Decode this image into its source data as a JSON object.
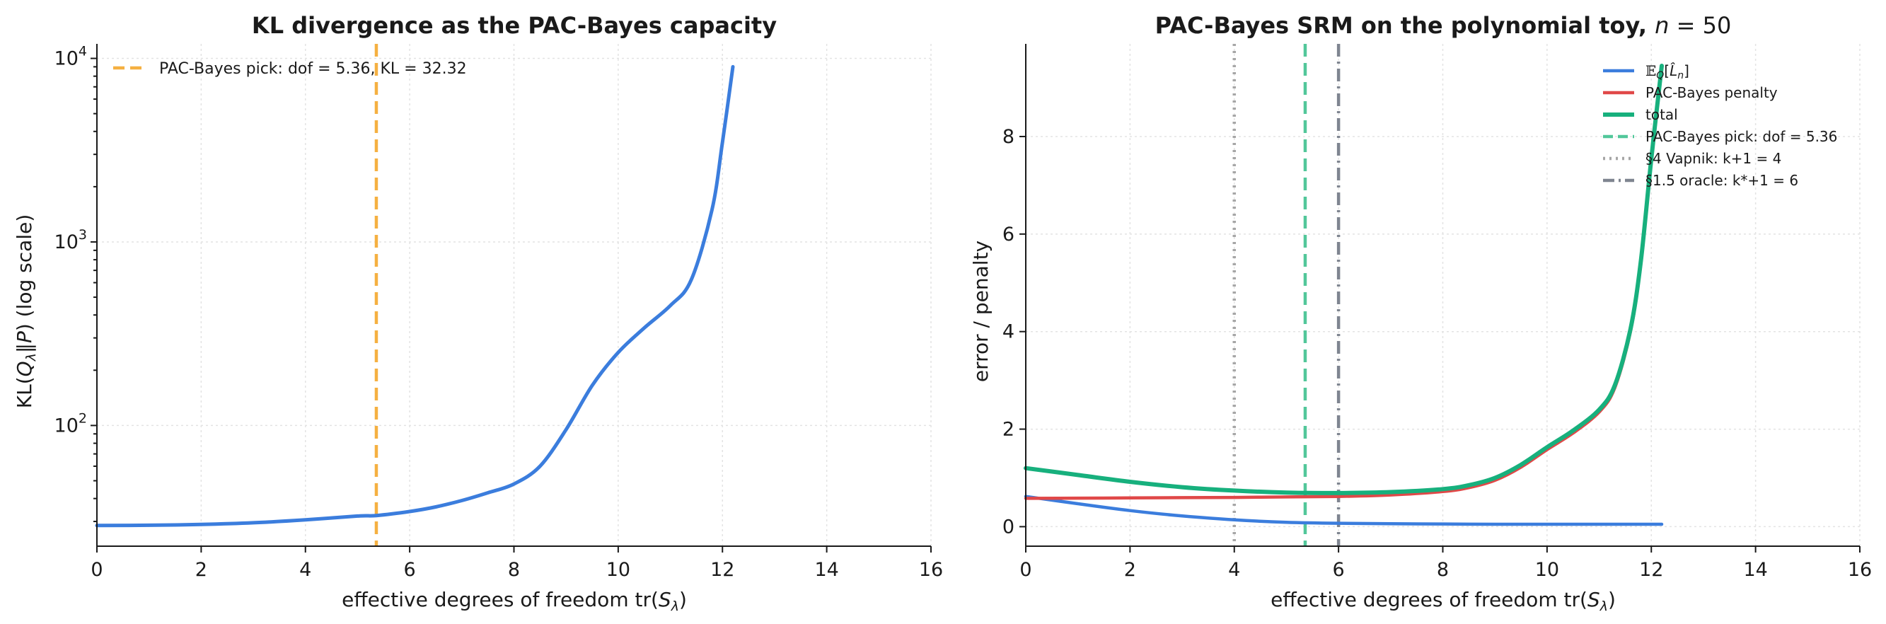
{
  "chart_data": [
    {
      "id": "left",
      "type": "line",
      "title": "KL divergence as the PAC-Bayes capacity",
      "xlabel": "effective degrees of freedom tr(Sλ)",
      "ylabel": "KL(Qλ‖P)  (log scale)",
      "xlim": [
        0,
        16
      ],
      "ylim": [
        22,
        12000
      ],
      "yscale": "log",
      "grid": true,
      "legend_placement": "top-left",
      "x_ticks": [
        0,
        2,
        4,
        6,
        8,
        10,
        12,
        14,
        16
      ],
      "y_ticks": [
        {
          "value": 100,
          "base": "10",
          "exp": "2"
        },
        {
          "value": 1000,
          "base": "10",
          "exp": "3"
        },
        {
          "value": 10000,
          "base": "10",
          "exp": "4"
        }
      ],
      "series": [
        {
          "color": "#3b7ddd",
          "style": "solid",
          "x": [
            0,
            1,
            2,
            3,
            4,
            5,
            5.36,
            6,
            6.5,
            7,
            7.5,
            8,
            8.5,
            9,
            9.5,
            10,
            10.5,
            11,
            11.4,
            11.8,
            12.0,
            12.2
          ],
          "y": [
            28.5,
            28.6,
            28.9,
            29.5,
            30.6,
            32.1,
            32.32,
            34.0,
            36.0,
            39.0,
            43.0,
            48.0,
            60.0,
            95.0,
            165.0,
            250.0,
            340.0,
            450.0,
            620.0,
            1500.0,
            3500.0,
            9000.0
          ]
        }
      ],
      "vlines": [
        {
          "name": "PAC-Bayes pick: dof = 5.36, KL = 32.32",
          "x": 5.36,
          "color": "#f5b041",
          "style": "dashed"
        }
      ]
    },
    {
      "id": "right",
      "type": "line",
      "title": "PAC-Bayes SRM on the polynomial toy,",
      "title_math": "n = 50",
      "xlabel": "effective degrees of freedom tr(Sλ)",
      "ylabel": "error / penalty",
      "xlim": [
        0,
        16
      ],
      "ylim": [
        -0.4,
        9.9
      ],
      "grid": true,
      "legend_placement": "top-right",
      "x_ticks": [
        0,
        2,
        4,
        6,
        8,
        10,
        12,
        14,
        16
      ],
      "y_ticks": [
        0,
        2,
        4,
        6,
        8
      ],
      "series": [
        {
          "name": "E_Q[̂L_n]",
          "color": "#3b7ddd",
          "style": "solid",
          "width": 4.5,
          "x": [
            0,
            1,
            2,
            3,
            4,
            5,
            6,
            7,
            8,
            9,
            10,
            11,
            12,
            12.2
          ],
          "y": [
            0.62,
            0.47,
            0.33,
            0.22,
            0.14,
            0.09,
            0.07,
            0.06,
            0.055,
            0.05,
            0.05,
            0.05,
            0.05,
            0.05
          ]
        },
        {
          "name": "PAC-Bayes penalty",
          "color": "#e04848",
          "style": "solid",
          "width": 4.5,
          "x": [
            0,
            1,
            2,
            3,
            4,
            5,
            6,
            7,
            8,
            8.5,
            9,
            9.5,
            10,
            10.5,
            11,
            11.3,
            11.6,
            11.8,
            12.0,
            12.2
          ],
          "y": [
            0.58,
            0.585,
            0.59,
            0.595,
            0.6,
            0.61,
            0.62,
            0.65,
            0.72,
            0.8,
            0.95,
            1.22,
            1.58,
            1.92,
            2.35,
            2.85,
            4.0,
            5.4,
            7.5,
            9.4
          ]
        },
        {
          "name": "total",
          "color": "#17b07d",
          "style": "solid",
          "width": 6,
          "x": [
            0,
            1,
            2,
            3,
            4,
            5,
            6,
            7,
            8,
            8.5,
            9,
            9.5,
            10,
            10.5,
            11,
            11.3,
            11.6,
            11.8,
            12.0,
            12.2
          ],
          "y": [
            1.2,
            1.06,
            0.92,
            0.81,
            0.74,
            0.7,
            0.69,
            0.71,
            0.77,
            0.85,
            1.0,
            1.27,
            1.63,
            1.97,
            2.4,
            2.9,
            4.05,
            5.45,
            7.55,
            9.45
          ]
        }
      ],
      "vlines": [
        {
          "name": "PAC-Bayes pick: dof = 5.36",
          "x": 5.36,
          "color": "#52c79a",
          "style": "dashed"
        },
        {
          "name": "§4 Vapnik: k+1 = 4",
          "x": 4,
          "color": "#a6a6a6",
          "style": "dotted"
        },
        {
          "name": "§1.5 oracle: k*+1 = 6",
          "x": 6,
          "color": "#7f8590",
          "style": "dashdot"
        }
      ]
    }
  ]
}
